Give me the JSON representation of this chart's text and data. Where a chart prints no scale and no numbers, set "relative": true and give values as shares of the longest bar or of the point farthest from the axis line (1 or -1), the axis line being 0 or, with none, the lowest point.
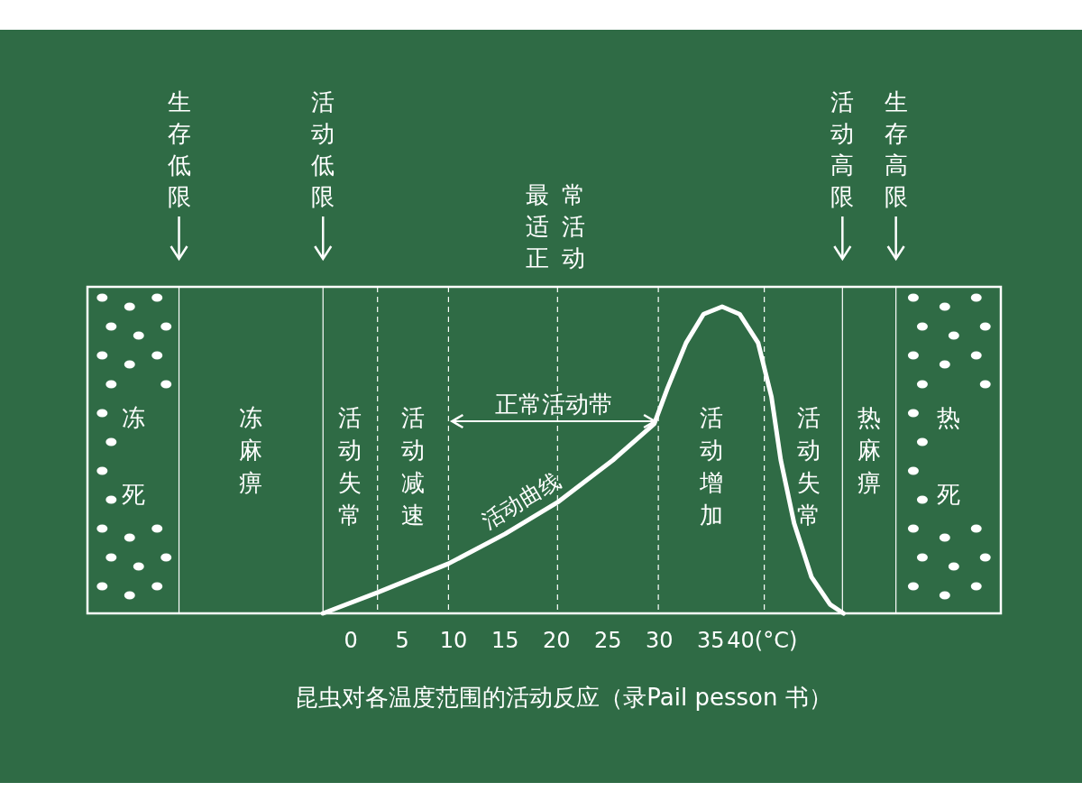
{
  "chart_data": {
    "type": "line",
    "title": "昆虫对各温度范围的活动反应（录Pail pesson 书）",
    "relative": true,
    "xlim": [
      -25.6,
      63.2
    ],
    "xticks": [
      0,
      5,
      10,
      15,
      20,
      25,
      30,
      35,
      {
        "value": 40,
        "label": "40(°C)"
      }
    ],
    "series": [
      {
        "name": "活动曲线",
        "color": "#ffffff",
        "x": [
          -2.7,
          2.6,
          9.5,
          15,
          20.1,
          25.5,
          29.5,
          30.8,
          32.6,
          34.3,
          36.1,
          37.8,
          39.6,
          40.9,
          41.8,
          43.1,
          44.8,
          46.6,
          47.9
        ],
        "values": [
          0,
          0.068,
          0.162,
          0.259,
          0.362,
          0.5,
          0.618,
          0.735,
          0.882,
          0.976,
          1,
          0.976,
          0.882,
          0.706,
          0.5,
          0.294,
          0.118,
          0.029,
          0
        ]
      }
    ],
    "ref_lines": [
      {
        "axis": "x",
        "value": -16.7,
        "line_style": "solid"
      },
      {
        "axis": "x",
        "value": -2.7,
        "line_style": "solid"
      },
      {
        "axis": "x",
        "value": 2.6,
        "line_style": "dashed"
      },
      {
        "axis": "x",
        "value": 9.5,
        "line_style": "dashed"
      },
      {
        "axis": "x",
        "value": 20.1,
        "label": "最适正常活动",
        "line_style": "dashed"
      },
      {
        "axis": "x",
        "value": 29.9,
        "line_style": "dashed"
      },
      {
        "axis": "x",
        "value": 40.2,
        "line_style": "dashed"
      },
      {
        "axis": "x",
        "value": 47.8,
        "line_style": "solid"
      },
      {
        "axis": "x",
        "value": 53.0,
        "line_style": "solid"
      }
    ],
    "annotations": [
      "生存低限",
      "活动低限",
      "活动高限",
      "生存高限",
      "冻死",
      "冻麻痹",
      "活动失常",
      "活动减速",
      "正常活动带",
      "活动增加",
      "活动失常",
      "热麻痹",
      "热死"
    ]
  }
}
